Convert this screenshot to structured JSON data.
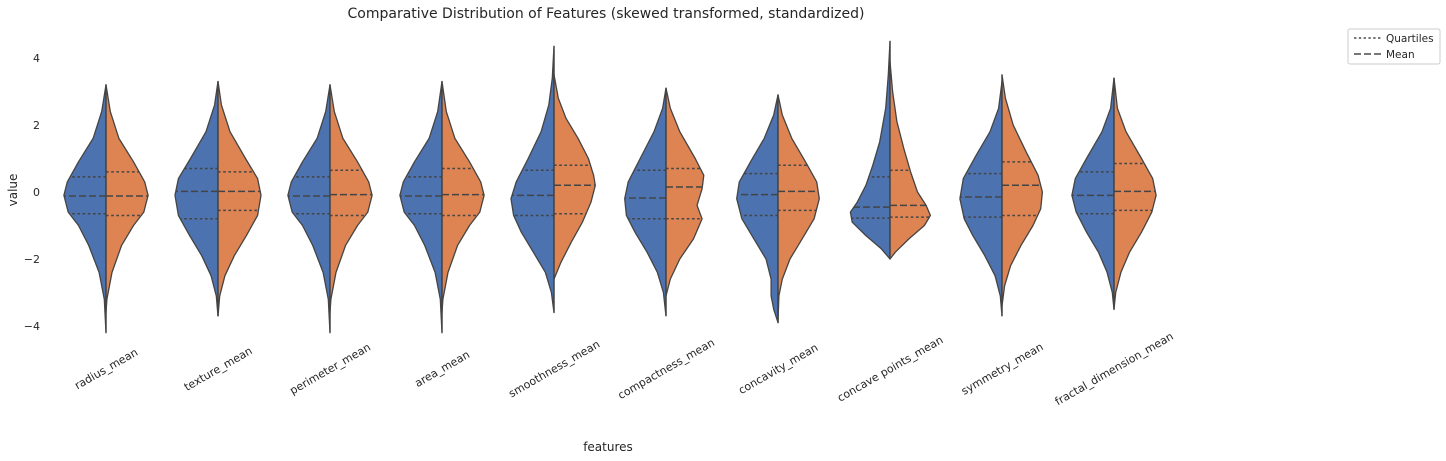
{
  "chart_data": {
    "type": "violin",
    "title": "Comparative Distribution of Features (skewed transformed, standardized)",
    "xlabel": "features",
    "ylabel": "value",
    "ylim": [
      -4.4,
      4.6
    ],
    "yticks": [
      4,
      2,
      0,
      -2,
      -4
    ],
    "ytick_labels": [
      "4",
      "2",
      "0",
      "−2",
      "−4"
    ],
    "categories": [
      "radius_mean",
      "texture_mean",
      "perimeter_mean",
      "area_mean",
      "smoothness_mean",
      "compactness_mean",
      "concavity_mean",
      "concave points_mean",
      "symmetry_mean",
      "fractal_dimension_mean"
    ],
    "split": true,
    "series_colors": [
      "#4c72b0",
      "#dd8452"
    ],
    "grid": false,
    "legend": {
      "placement": "outside-top-right",
      "entries": [
        {
          "label": "Quartiles",
          "style": "dotted"
        },
        {
          "label": "Mean",
          "style": "dashed"
        }
      ]
    },
    "violins": [
      {
        "left": {
          "ys": [
            3.2,
            2.4,
            1.6,
            0.9,
            0.3,
            -0.1,
            -0.6,
            -1.0,
            -1.6,
            -2.4,
            -3.2,
            -4.2
          ],
          "ws": [
            0.0,
            0.05,
            0.15,
            0.32,
            0.45,
            0.49,
            0.44,
            0.32,
            0.2,
            0.08,
            0.02,
            0.0
          ],
          "q": [
            0.45,
            -0.65
          ],
          "mean": -0.12
        },
        "right": {
          "ys": [
            3.2,
            2.4,
            1.6,
            0.9,
            0.3,
            -0.1,
            -0.6,
            -1.0,
            -1.6,
            -2.4,
            -3.2,
            -3.6
          ],
          "ws": [
            0.0,
            0.05,
            0.15,
            0.32,
            0.45,
            0.49,
            0.44,
            0.32,
            0.18,
            0.07,
            0.01,
            0.0
          ],
          "q": [
            0.6,
            -0.7
          ],
          "mean": -0.12
        }
      },
      {
        "left": {
          "ys": [
            3.3,
            2.6,
            1.8,
            1.0,
            0.4,
            -0.1,
            -0.7,
            -1.3,
            -1.9,
            -2.5,
            -3.1,
            -3.7
          ],
          "ws": [
            0.0,
            0.04,
            0.14,
            0.32,
            0.46,
            0.5,
            0.46,
            0.33,
            0.19,
            0.08,
            0.02,
            0.0
          ],
          "q": [
            0.7,
            -0.8
          ],
          "mean": 0.02
        },
        "right": {
          "ys": [
            3.3,
            2.6,
            1.8,
            1.0,
            0.4,
            -0.1,
            -0.7,
            -1.3,
            -1.9,
            -2.5,
            -3.1,
            -3.7
          ],
          "ws": [
            0.0,
            0.04,
            0.14,
            0.32,
            0.46,
            0.5,
            0.46,
            0.33,
            0.19,
            0.08,
            0.02,
            0.0
          ],
          "q": [
            0.6,
            -0.55
          ],
          "mean": 0.02
        }
      },
      {
        "left": {
          "ys": [
            3.2,
            2.4,
            1.6,
            0.9,
            0.3,
            -0.1,
            -0.6,
            -1.0,
            -1.6,
            -2.4,
            -3.2,
            -4.2
          ],
          "ws": [
            0.0,
            0.05,
            0.15,
            0.32,
            0.45,
            0.49,
            0.44,
            0.32,
            0.2,
            0.08,
            0.02,
            0.0
          ],
          "q": [
            0.45,
            -0.65
          ],
          "mean": -0.12
        },
        "right": {
          "ys": [
            3.2,
            2.4,
            1.6,
            0.9,
            0.3,
            -0.1,
            -0.6,
            -1.0,
            -1.6,
            -2.4,
            -3.2,
            -3.6
          ],
          "ws": [
            0.0,
            0.05,
            0.15,
            0.32,
            0.45,
            0.49,
            0.44,
            0.32,
            0.18,
            0.07,
            0.01,
            0.0
          ],
          "q": [
            0.65,
            -0.7
          ],
          "mean": -0.08
        }
      },
      {
        "left": {
          "ys": [
            3.3,
            2.4,
            1.6,
            0.9,
            0.3,
            -0.1,
            -0.6,
            -1.0,
            -1.6,
            -2.4,
            -3.2,
            -4.2
          ],
          "ws": [
            0.0,
            0.05,
            0.15,
            0.32,
            0.45,
            0.49,
            0.44,
            0.32,
            0.2,
            0.08,
            0.02,
            0.0
          ],
          "q": [
            0.45,
            -0.65
          ],
          "mean": -0.12
        },
        "right": {
          "ys": [
            3.3,
            2.4,
            1.6,
            0.9,
            0.3,
            -0.1,
            -0.6,
            -1.0,
            -1.6,
            -2.4,
            -3.2,
            -3.6
          ],
          "ws": [
            0.0,
            0.05,
            0.15,
            0.32,
            0.45,
            0.49,
            0.44,
            0.32,
            0.18,
            0.07,
            0.01,
            0.0
          ],
          "q": [
            0.7,
            -0.7
          ],
          "mean": -0.08
        }
      },
      {
        "left": {
          "ys": [
            4.35,
            3.4,
            2.6,
            1.8,
            1.0,
            0.3,
            -0.2,
            -0.7,
            -1.2,
            -1.8,
            -2.4,
            -3.0,
            -3.6
          ],
          "ws": [
            0.0,
            0.02,
            0.06,
            0.15,
            0.3,
            0.44,
            0.5,
            0.47,
            0.38,
            0.24,
            0.1,
            0.03,
            0.0
          ],
          "q": [
            0.65,
            -0.7
          ],
          "mean": -0.1
        },
        "right": {
          "ys": [
            3.5,
            2.8,
            2.2,
            1.6,
            1.0,
            0.5,
            0.2,
            -0.3,
            -0.9,
            -1.5,
            -2.1,
            -2.6
          ],
          "ws": [
            0.0,
            0.05,
            0.14,
            0.28,
            0.4,
            0.46,
            0.48,
            0.43,
            0.33,
            0.2,
            0.08,
            0.0
          ],
          "q": [
            0.8,
            -0.65
          ],
          "mean": 0.2
        }
      },
      {
        "left": {
          "ys": [
            3.1,
            2.5,
            1.8,
            1.0,
            0.3,
            -0.2,
            -0.7,
            -1.2,
            -1.8,
            -2.4,
            -3.0,
            -3.7
          ],
          "ws": [
            0.0,
            0.04,
            0.14,
            0.3,
            0.44,
            0.48,
            0.46,
            0.36,
            0.22,
            0.1,
            0.03,
            0.0
          ],
          "q": [
            0.65,
            -0.8
          ],
          "mean": -0.18
        },
        "right": {
          "ys": [
            3.1,
            2.5,
            1.8,
            1.0,
            0.5,
            0.1,
            -0.4,
            -0.8,
            -1.4,
            -2.0,
            -2.6,
            -3.1
          ],
          "ws": [
            0.0,
            0.05,
            0.16,
            0.34,
            0.44,
            0.42,
            0.36,
            0.42,
            0.32,
            0.16,
            0.05,
            0.0
          ],
          "q": [
            0.7,
            -0.8
          ],
          "mean": 0.15
        }
      },
      {
        "left": {
          "ys": [
            2.9,
            2.3,
            1.6,
            0.9,
            0.3,
            -0.2,
            -0.8,
            -1.4,
            -2.0,
            -2.6,
            -3.1,
            -3.5,
            -3.9
          ],
          "ws": [
            0.0,
            0.05,
            0.16,
            0.32,
            0.45,
            0.48,
            0.42,
            0.28,
            0.14,
            0.08,
            0.08,
            0.05,
            0.0
          ],
          "q": [
            0.55,
            -0.7
          ],
          "mean": -0.08
        },
        "right": {
          "ys": [
            2.9,
            2.3,
            1.6,
            0.9,
            0.3,
            -0.2,
            -0.8,
            -1.4,
            -2.0,
            -2.6,
            -3.1,
            -3.9
          ],
          "ws": [
            0.0,
            0.05,
            0.16,
            0.32,
            0.45,
            0.48,
            0.42,
            0.28,
            0.14,
            0.05,
            0.01,
            0.0
          ],
          "q": [
            0.8,
            -0.55
          ],
          "mean": 0.02
        }
      },
      {
        "left": {
          "ys": [
            4.5,
            3.5,
            2.5,
            1.5,
            0.8,
            0.2,
            -0.3,
            -0.6,
            -0.9,
            -1.3,
            -1.7,
            -2.0
          ],
          "ws": [
            0.0,
            0.02,
            0.05,
            0.12,
            0.2,
            0.28,
            0.38,
            0.46,
            0.44,
            0.28,
            0.1,
            0.0
          ],
          "q": [
            0.45,
            -0.78
          ],
          "mean": -0.45
        },
        "right": {
          "ys": [
            3.9,
            3.0,
            2.1,
            1.3,
            0.6,
            0.0,
            -0.4,
            -0.7,
            -1.0,
            -1.4,
            -1.8,
            -2.0
          ],
          "ws": [
            0.0,
            0.03,
            0.08,
            0.16,
            0.24,
            0.32,
            0.42,
            0.47,
            0.4,
            0.22,
            0.06,
            0.0
          ],
          "q": [
            0.65,
            -0.75
          ],
          "mean": -0.4
        }
      },
      {
        "left": {
          "ys": [
            3.3,
            2.5,
            1.8,
            1.1,
            0.4,
            -0.2,
            -0.8,
            -1.3,
            -1.9,
            -2.5,
            -3.1,
            -3.7
          ],
          "ws": [
            0.0,
            0.04,
            0.14,
            0.3,
            0.45,
            0.49,
            0.44,
            0.34,
            0.2,
            0.08,
            0.02,
            0.0
          ],
          "q": [
            0.55,
            -0.75
          ],
          "mean": -0.15
        },
        "right": {
          "ys": [
            3.5,
            2.8,
            2.0,
            1.2,
            0.5,
            0.0,
            -0.5,
            -1.0,
            -1.6,
            -2.2,
            -2.8,
            -3.4
          ],
          "ws": [
            0.0,
            0.04,
            0.13,
            0.28,
            0.42,
            0.47,
            0.45,
            0.36,
            0.22,
            0.1,
            0.03,
            0.0
          ],
          "q": [
            0.9,
            -0.7
          ],
          "mean": 0.2
        }
      },
      {
        "left": {
          "ys": [
            3.4,
            2.5,
            1.8,
            1.0,
            0.4,
            -0.1,
            -0.6,
            -1.2,
            -1.8,
            -2.4,
            -3.0,
            -3.5
          ],
          "ws": [
            0.0,
            0.04,
            0.14,
            0.32,
            0.45,
            0.49,
            0.44,
            0.32,
            0.18,
            0.08,
            0.02,
            0.0
          ],
          "q": [
            0.6,
            -0.65
          ],
          "mean": -0.1
        },
        "right": {
          "ys": [
            3.4,
            2.5,
            1.8,
            1.0,
            0.4,
            -0.1,
            -0.6,
            -1.2,
            -1.8,
            -2.4,
            -3.0,
            -3.5
          ],
          "ws": [
            0.0,
            0.04,
            0.14,
            0.32,
            0.45,
            0.49,
            0.44,
            0.32,
            0.18,
            0.08,
            0.02,
            0.0
          ],
          "q": [
            0.85,
            -0.55
          ],
          "mean": 0.02
        }
      }
    ]
  }
}
